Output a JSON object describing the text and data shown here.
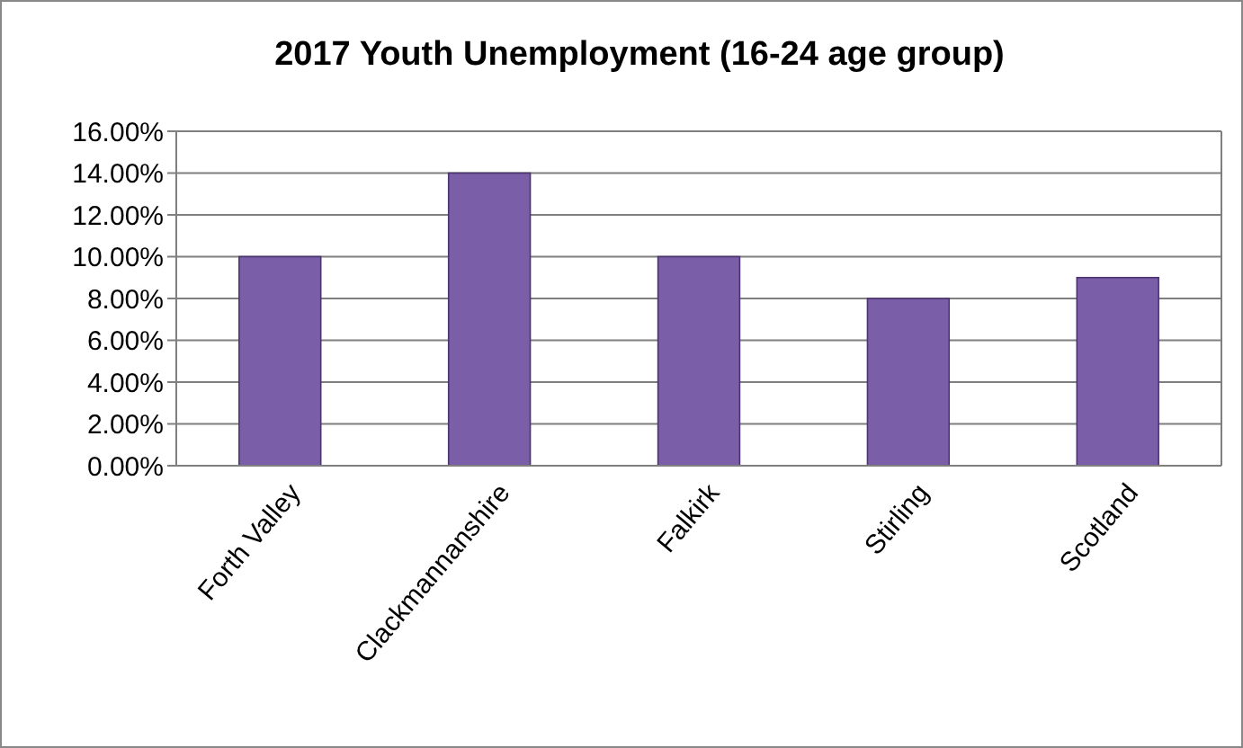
{
  "chart_data": {
    "type": "bar",
    "title": "2017 Youth Unemployment (16-24 age group)",
    "categories": [
      "Forth Valley",
      "Clackmannanshire",
      "Falkirk",
      "Stirling",
      "Scotland"
    ],
    "values": [
      10,
      14,
      10,
      8,
      9
    ],
    "color": "#7b5ea8",
    "ylim": [
      0,
      16
    ],
    "yticks": [
      {
        "value": 0,
        "label": "0.00%"
      },
      {
        "value": 2,
        "label": "2.00%"
      },
      {
        "value": 4,
        "label": "4.00%"
      },
      {
        "value": 6,
        "label": "6.00%"
      },
      {
        "value": 8,
        "label": "8.00%"
      },
      {
        "value": 10,
        "label": "10.00%"
      },
      {
        "value": 12,
        "label": "12.00%"
      },
      {
        "value": 14,
        "label": "14.00%"
      },
      {
        "value": 16,
        "label": "16.00%"
      }
    ],
    "grid": "y"
  }
}
